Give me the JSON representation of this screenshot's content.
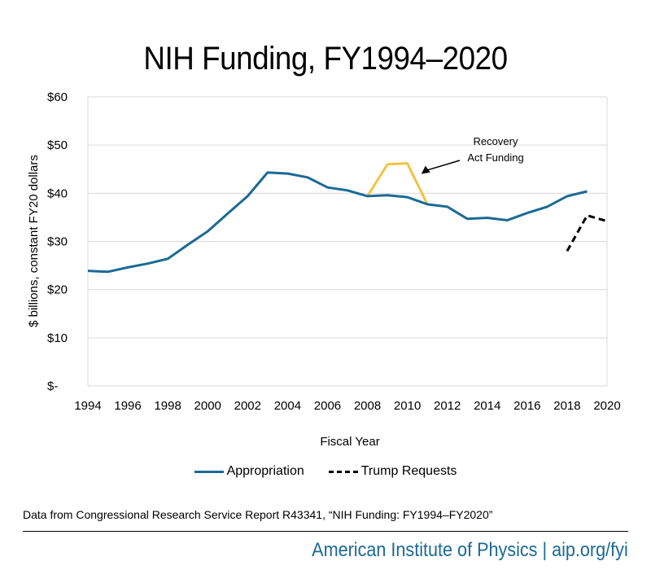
{
  "title": "NIH Funding, FY1994–2020",
  "source_note": "Data from Congressional Research Service Report R43341, “NIH Funding: FY1994–FY2020”",
  "footer": "American Institute of Physics | aip.org/fyi",
  "chart_data": {
    "type": "line",
    "title": "NIH Funding, FY1994–2020",
    "xlabel": "Fiscal Year",
    "ylabel": "$ billions, constant FY20 dollars",
    "xlim": [
      1994,
      2020
    ],
    "ylim": [
      0,
      60
    ],
    "x_ticks": [
      "1994",
      "1996",
      "1998",
      "2000",
      "2002",
      "2004",
      "2006",
      "2008",
      "2010",
      "2012",
      "2014",
      "2016",
      "2018",
      "2020"
    ],
    "y_ticks": [
      "$-",
      "$10",
      "$20",
      "$30",
      "$40",
      "$50",
      "$60"
    ],
    "grid": "horizontal",
    "legend_position": "bottom",
    "colors": {
      "appropriation": "#1b6a94",
      "recovery": "#f5c242",
      "requests": "#000000"
    },
    "series": [
      {
        "name": "Appropriation",
        "style": "solid",
        "x": [
          1994,
          1995,
          1996,
          1997,
          1998,
          1999,
          2000,
          2001,
          2002,
          2003,
          2004,
          2005,
          2006,
          2007,
          2008,
          2009,
          2010,
          2011,
          2012,
          2013,
          2014,
          2015,
          2016,
          2017,
          2018,
          2019
        ],
        "values": [
          23.9,
          23.7,
          24.6,
          25.4,
          26.4,
          29.3,
          32.1,
          35.8,
          39.4,
          44.3,
          44.1,
          43.3,
          41.2,
          40.6,
          39.4,
          39.6,
          39.2,
          37.7,
          37.2,
          34.7,
          34.9,
          34.4,
          35.9,
          37.2,
          39.4,
          40.4
        ]
      },
      {
        "name": "Recovery Act Funding",
        "style": "solid",
        "x": [
          2008,
          2009,
          2010,
          2011
        ],
        "values": [
          39.4,
          46.0,
          46.2,
          37.7
        ]
      },
      {
        "name": "Trump Requests",
        "style": "dashed",
        "x": [
          2018,
          2019,
          2020
        ],
        "values": [
          28.0,
          35.4,
          34.2
        ]
      }
    ],
    "annotations": [
      {
        "text_lines": [
          "Recovery",
          "Act Funding"
        ],
        "arrow_to": [
          2010.7,
          44.0
        ]
      }
    ],
    "legend": [
      "Appropriation",
      "Trump Requests"
    ]
  }
}
